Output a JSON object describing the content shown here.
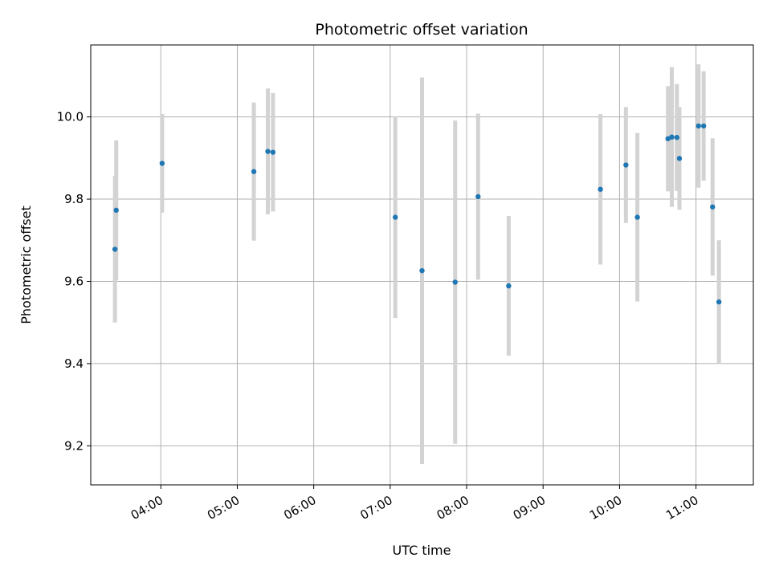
{
  "chart_data": {
    "type": "scatter",
    "title": "Photometric offset variation",
    "xlabel": "UTC time",
    "ylabel": "Photometric offset",
    "x_ticks": [
      "04:00",
      "05:00",
      "06:00",
      "07:00",
      "08:00",
      "09:00",
      "10:00",
      "11:00"
    ],
    "y_ticks": [
      "9.2",
      "9.4",
      "9.6",
      "9.8",
      "10.0"
    ],
    "xlim": [
      "03:05",
      "11:45"
    ],
    "ylim": [
      9.105,
      10.175
    ],
    "grid": true,
    "colors": {
      "point": "#1f77b4",
      "errorbar": "#d3d3d3",
      "grid": "#b0b0b0"
    },
    "points": [
      {
        "x": "03:24",
        "y": 9.678,
        "yerr": 0.178
      },
      {
        "x": "03:25",
        "y": 9.773,
        "yerr": 0.17
      },
      {
        "x": "04:01",
        "y": 9.887,
        "yerr": 0.12
      },
      {
        "x": "05:13",
        "y": 9.867,
        "yerr": 0.168
      },
      {
        "x": "05:24",
        "y": 9.916,
        "yerr": 0.153
      },
      {
        "x": "05:28",
        "y": 9.914,
        "yerr": 0.144
      },
      {
        "x": "07:04",
        "y": 9.756,
        "yerr": 0.245
      },
      {
        "x": "07:25",
        "y": 9.626,
        "yerr": 0.47
      },
      {
        "x": "07:51",
        "y": 9.598,
        "yerr": 0.393
      },
      {
        "x": "08:09",
        "y": 9.806,
        "yerr": 0.202
      },
      {
        "x": "08:33",
        "y": 9.589,
        "yerr": 0.17
      },
      {
        "x": "09:45",
        "y": 9.824,
        "yerr": 0.183
      },
      {
        "x": "10:05",
        "y": 9.883,
        "yerr": 0.141
      },
      {
        "x": "10:14",
        "y": 9.756,
        "yerr": 0.205
      },
      {
        "x": "10:38",
        "y": 9.947,
        "yerr": 0.128
      },
      {
        "x": "10:41",
        "y": 9.951,
        "yerr": 0.17
      },
      {
        "x": "10:45",
        "y": 9.95,
        "yerr": 0.13
      },
      {
        "x": "10:47",
        "y": 9.899,
        "yerr": 0.125
      },
      {
        "x": "11:02",
        "y": 9.978,
        "yerr": 0.15
      },
      {
        "x": "11:06",
        "y": 9.978,
        "yerr": 0.133
      },
      {
        "x": "11:13",
        "y": 9.781,
        "yerr": 0.167
      },
      {
        "x": "11:18",
        "y": 9.55,
        "yerr": 0.15
      }
    ]
  }
}
